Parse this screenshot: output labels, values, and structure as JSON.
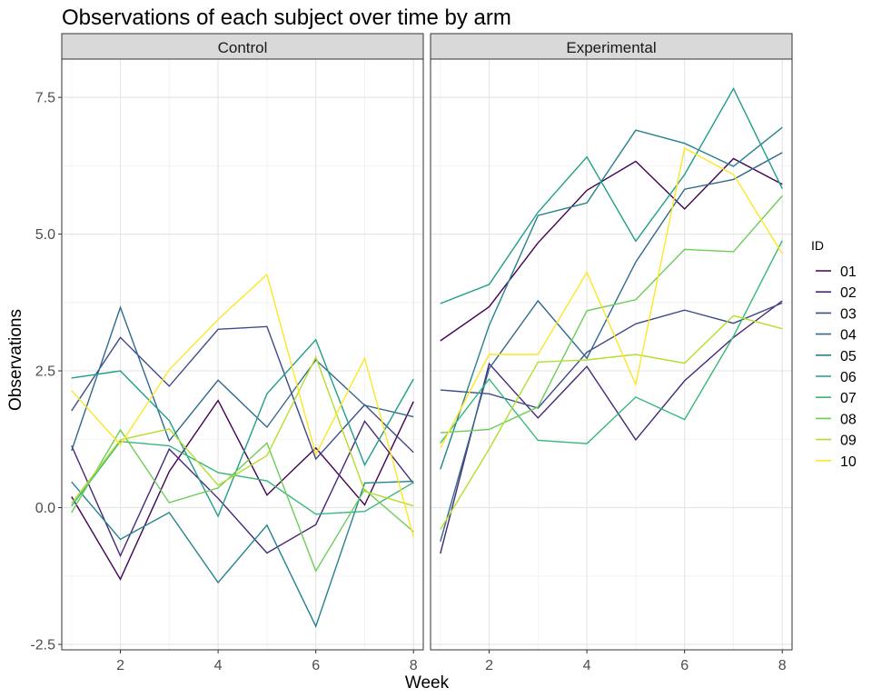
{
  "chart_data": {
    "type": "line",
    "title": "Observations of each subject over time by arm",
    "xlabel": "Week",
    "ylabel": "Observations",
    "xlim": [
      0.8,
      8.2
    ],
    "ylim": [
      -2.6,
      8.2
    ],
    "x_ticks": [
      2,
      4,
      6,
      8
    ],
    "y_ticks": [
      -2.5,
      0.0,
      2.5,
      5.0,
      7.5
    ],
    "y_tick_labels": [
      "-2.5",
      "0.0",
      "2.5",
      "5.0",
      "7.5"
    ],
    "x": [
      1,
      2,
      3,
      4,
      5,
      6,
      7,
      8
    ],
    "grid": true,
    "legend": {
      "title": "ID",
      "placement": "right",
      "entries": [
        {
          "label": "01",
          "color": "#440154"
        },
        {
          "label": "02",
          "color": "#482878"
        },
        {
          "label": "03",
          "color": "#3E4A89"
        },
        {
          "label": "04",
          "color": "#31688E"
        },
        {
          "label": "05",
          "color": "#26828E"
        },
        {
          "label": "06",
          "color": "#1F9E89"
        },
        {
          "label": "07",
          "color": "#35B779"
        },
        {
          "label": "08",
          "color": "#6DCD59"
        },
        {
          "label": "09",
          "color": "#B4DE2C"
        },
        {
          "label": "10",
          "color": "#FDE725"
        }
      ]
    },
    "panels": [
      {
        "name": "Control",
        "series": [
          {
            "id": "01",
            "values": [
              0.2,
              -1.31,
              0.66,
              1.96,
              0.23,
              1.09,
              0.05,
              1.94
            ]
          },
          {
            "id": "02",
            "values": [
              1.13,
              -0.88,
              1.07,
              0.17,
              -0.83,
              -0.31,
              1.58,
              0.44
            ]
          },
          {
            "id": "03",
            "values": [
              1.77,
              3.11,
              2.22,
              3.26,
              3.31,
              0.89,
              1.88,
              1.01
            ]
          },
          {
            "id": "04",
            "values": [
              1.04,
              3.66,
              1.22,
              2.33,
              1.47,
              2.7,
              1.87,
              1.66
            ]
          },
          {
            "id": "05",
            "values": [
              0.47,
              -0.58,
              -0.09,
              -1.37,
              -0.32,
              -2.17,
              0.45,
              0.48
            ]
          },
          {
            "id": "06",
            "values": [
              2.37,
              2.5,
              1.59,
              -0.16,
              2.08,
              3.07,
              0.78,
              2.35
            ]
          },
          {
            "id": "07",
            "values": [
              0.03,
              1.21,
              1.13,
              0.64,
              0.49,
              -0.12,
              -0.07,
              0.46
            ]
          },
          {
            "id": "08",
            "values": [
              -0.09,
              1.42,
              0.09,
              0.36,
              1.18,
              -1.16,
              0.33,
              -0.44
            ]
          },
          {
            "id": "09",
            "values": [
              0.08,
              1.24,
              1.44,
              0.41,
              0.95,
              2.75,
              0.3,
              0.03
            ]
          },
          {
            "id": "10",
            "values": [
              2.14,
              1.15,
              2.52,
              3.44,
              4.26,
              0.97,
              2.73,
              -0.53
            ]
          }
        ]
      },
      {
        "name": "Experimental",
        "series": [
          {
            "id": "01",
            "values": [
              3.05,
              3.67,
              4.84,
              5.8,
              6.33,
              5.46,
              6.38,
              5.91
            ]
          },
          {
            "id": "02",
            "values": [
              -0.84,
              2.63,
              1.64,
              2.58,
              1.24,
              2.32,
              3.11,
              3.78
            ]
          },
          {
            "id": "03",
            "values": [
              2.15,
              2.08,
              1.82,
              2.84,
              3.36,
              3.61,
              3.37,
              3.74
            ]
          },
          {
            "id": "04",
            "values": [
              -0.62,
              2.54,
              3.78,
              2.73,
              4.49,
              5.82,
              6.0,
              6.49
            ]
          },
          {
            "id": "05",
            "values": [
              0.7,
              3.33,
              5.34,
              5.57,
              6.9,
              6.66,
              6.24,
              6.95
            ]
          },
          {
            "id": "06",
            "values": [
              3.73,
              4.08,
              5.4,
              6.41,
              4.87,
              6.09,
              7.66,
              5.83
            ]
          },
          {
            "id": "07",
            "values": [
              1.18,
              2.35,
              1.23,
              1.17,
              2.02,
              1.61,
              3.13,
              4.88
            ]
          },
          {
            "id": "08",
            "values": [
              1.37,
              1.43,
              1.84,
              3.6,
              3.8,
              4.72,
              4.68,
              5.7
            ]
          },
          {
            "id": "09",
            "values": [
              -0.4,
              1.07,
              2.66,
              2.7,
              2.8,
              2.64,
              3.51,
              3.27
            ]
          },
          {
            "id": "10",
            "values": [
              1.09,
              2.8,
              2.8,
              4.3,
              2.25,
              6.57,
              6.09,
              4.64
            ]
          }
        ]
      }
    ]
  }
}
